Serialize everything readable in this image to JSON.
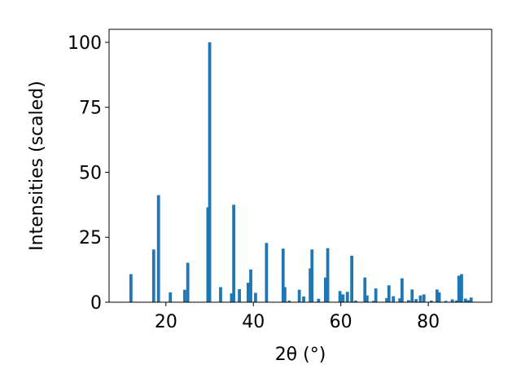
{
  "chart_data": {
    "type": "bar",
    "xlabel": "2θ (°)",
    "ylabel": "Intensities (scaled)",
    "xlim": [
      7,
      94.5
    ],
    "ylim": [
      0,
      105
    ],
    "xticks": [
      20,
      40,
      60,
      80
    ],
    "yticks": [
      0,
      25,
      50,
      75,
      100
    ],
    "bar_color": "#1f77b4",
    "bar_width": 0.7,
    "x": [
      12.0,
      17.2,
      18.3,
      21.0,
      24.3,
      25.0,
      29.6,
      30.0,
      32.5,
      35.0,
      35.5,
      36.8,
      38.8,
      39.4,
      40.5,
      43.0,
      46.8,
      47.2,
      48.2,
      50.5,
      51.5,
      53.0,
      53.4,
      54.9,
      56.5,
      57.0,
      59.8,
      60.5,
      61.5,
      62.5,
      63.4,
      65.5,
      66.0,
      67.5,
      68.0,
      70.5,
      71.0,
      72.0,
      73.5,
      74.0,
      75.5,
      76.3,
      77.2,
      78.2,
      79.0,
      80.7,
      82.0,
      82.5,
      84.0,
      85.5,
      86.5,
      87.0,
      87.6,
      88.5,
      89.2,
      89.8
    ],
    "values": [
      10.8,
      20.3,
      41.2,
      3.8,
      4.8,
      15.2,
      36.5,
      100.0,
      5.8,
      3.4,
      37.5,
      5.0,
      7.5,
      12.6,
      3.6,
      22.8,
      20.6,
      5.8,
      0.6,
      4.8,
      2.2,
      13.0,
      20.3,
      1.3,
      9.5,
      20.8,
      4.3,
      3.0,
      4.0,
      17.9,
      0.6,
      9.5,
      2.6,
      0.5,
      5.3,
      1.6,
      6.5,
      2.3,
      1.5,
      9.2,
      0.8,
      4.9,
      1.2,
      2.6,
      3.0,
      0.6,
      4.9,
      3.8,
      0.5,
      1.1,
      0.7,
      10.2,
      10.8,
      1.4,
      0.8,
      1.8
    ]
  }
}
